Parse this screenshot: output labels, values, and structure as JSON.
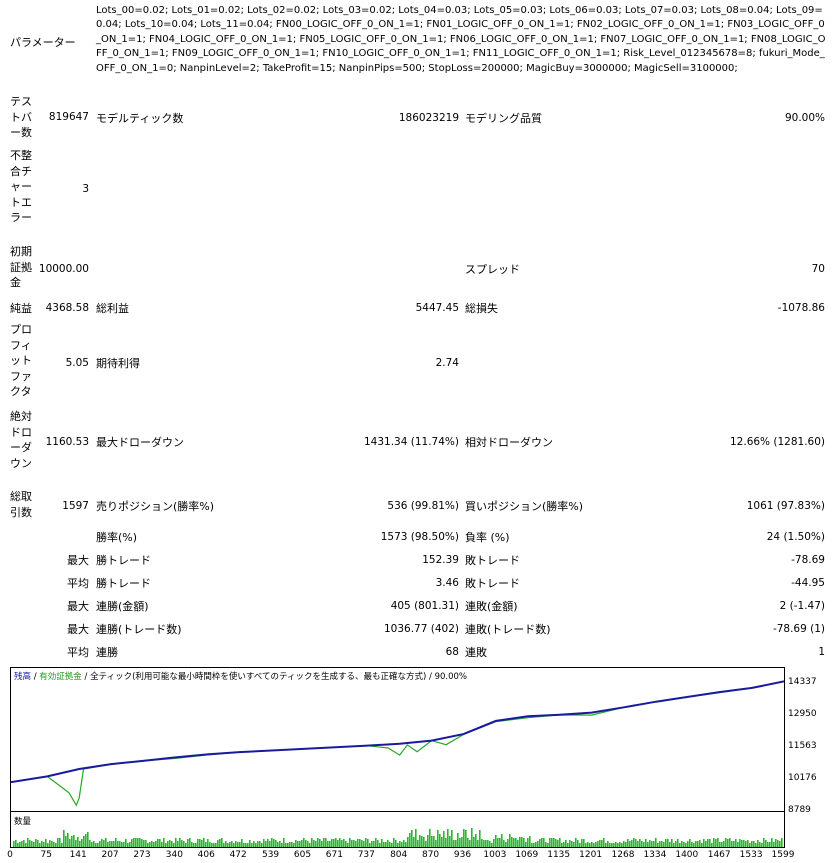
{
  "params_label": "パラメーター",
  "params_text": "Lots_00=0.02; Lots_01=0.02; Lots_02=0.02; Lots_03=0.02; Lots_04=0.03; Lots_05=0.03; Lots_06=0.03; Lots_07=0.03; Lots_08=0.04; Lots_09=0.04; Lots_10=0.04; Lots_11=0.04; FN00_LOGIC_OFF_0_ON_1=1; FN01_LOGIC_OFF_0_ON_1=1; FN02_LOGIC_OFF_0_ON_1=1; FN03_LOGIC_OFF_0_ON_1=1; FN04_LOGIC_OFF_0_ON_1=1; FN05_LOGIC_OFF_0_ON_1=1; FN06_LOGIC_OFF_0_ON_1=1; FN07_LOGIC_OFF_0_ON_1=1; FN08_LOGIC_OFF_0_ON_1=1; FN09_LOGIC_OFF_0_ON_1=1; FN10_LOGIC_OFF_0_ON_1=1; FN11_LOGIC_OFF_0_ON_1=1; Risk_Level_012345678=8; fukuri_Mode_OFF_0_ON_1=0; NanpinLevel=2; TakeProfit=15; NanpinPips=500; StopLoss=200000; MagicBuy=3000000; MagicSell=3100000;",
  "report": {
    "test_bars": {
      "label": "テストバー数",
      "value": "819647"
    },
    "model_ticks": {
      "label": "モデルティック数",
      "value": "186023219"
    },
    "model_quality": {
      "label": "モデリング品質",
      "value": "90.00%"
    },
    "mismatch": {
      "label": "不整合チャートエラー",
      "value": "3"
    },
    "initial_deposit": {
      "label": "初期証拠金",
      "value": "10000.00"
    },
    "spread": {
      "label": "スプレッド",
      "value": "70"
    },
    "net_profit": {
      "label": "純益",
      "value": "4368.58"
    },
    "gross_profit": {
      "label": "総利益",
      "value": "5447.45"
    },
    "gross_loss": {
      "label": "総損失",
      "value": "-1078.86"
    },
    "profit_factor": {
      "label": "プロフィットファクタ",
      "value": "5.05"
    },
    "expected_payoff": {
      "label": "期待利得",
      "value": "2.74"
    },
    "abs_drawdown": {
      "label": "絶対ドローダウン",
      "value": "1160.53"
    },
    "max_drawdown": {
      "label": "最大ドローダウン",
      "value": "1431.34 (11.74%)"
    },
    "rel_drawdown": {
      "label": "相対ドローダウン",
      "value": "12.66% (1281.60)"
    },
    "total_trades": {
      "label": "総取引数",
      "value": "1597"
    },
    "short_pos": {
      "label": "売りポジション(勝率%)",
      "value": "536 (99.81%)"
    },
    "long_pos": {
      "label": "買いポジション(勝率%)",
      "value": "1061 (97.83%)"
    },
    "win_rate": {
      "label": "勝率(%)",
      "value": "1573 (98.50%)"
    },
    "loss_rate": {
      "label": "負率 (%)",
      "value": "24 (1.50%)"
    },
    "max_win_trade": {
      "prefix": "最大",
      "label": "勝トレード",
      "value": "152.39"
    },
    "max_loss_trade": {
      "label": "敗トレード",
      "value": "-78.69"
    },
    "avg_win_trade": {
      "prefix": "平均",
      "label": "勝トレード",
      "value": "3.46"
    },
    "avg_loss_trade": {
      "label": "敗トレード",
      "value": "-44.95"
    },
    "max_consec_wins_amt": {
      "prefix": "最大",
      "label": "連勝(金額)",
      "value": "405 (801.31)"
    },
    "max_consec_losses_amt": {
      "label": "連敗(金額)",
      "value": "2 (-1.47)"
    },
    "max_consec_wins_cnt": {
      "prefix": "最大",
      "label": "連勝(トレード数)",
      "value": "1036.77 (402)"
    },
    "max_consec_losses_cnt": {
      "label": "連敗(トレード数)",
      "value": "-78.69 (1)"
    },
    "avg_consec_wins": {
      "prefix": "平均",
      "label": "連勝",
      "value": "68"
    },
    "avg_consec_losses": {
      "label": "連敗",
      "value": "1"
    }
  },
  "chart": {
    "legend": {
      "balance": "残高",
      "sep1": " / ",
      "equity": "有効証拠金",
      "sep2": " / ",
      "model": "全ティック(利用可能な最小時間枠を使いすべてのティックを生成する、最も正確な方式)",
      "sep3": " / ",
      "quality": "90.00%"
    },
    "volume_label": "数量",
    "colors": {
      "balance": "#1a1a9e",
      "equity": "#22aa22",
      "volume": "#22bb22",
      "legend_balance": "#1a1a9e",
      "legend_equity": "#229922"
    }
  },
  "chart_data": {
    "type": "line",
    "series": [
      {
        "name": "残高",
        "x": [
          0,
          75,
          141,
          207,
          273,
          340,
          406,
          472,
          539,
          605,
          671,
          737,
          804,
          870,
          936,
          1003,
          1069,
          1135,
          1201,
          1268,
          1334,
          1400,
          1467,
          1533,
          1599
        ],
        "values": [
          10080,
          10330,
          10650,
          10860,
          11000,
          11150,
          11280,
          11380,
          11450,
          11520,
          11590,
          11660,
          11740,
          11880,
          12160,
          12730,
          12930,
          13000,
          13090,
          13320,
          13560,
          13770,
          13980,
          14160,
          14440
        ]
      },
      {
        "name": "有効証拠金",
        "x": [
          0,
          75,
          120,
          135,
          141,
          150,
          207,
          273,
          340,
          406,
          472,
          539,
          605,
          671,
          737,
          780,
          804,
          820,
          840,
          870,
          900,
          936,
          1003,
          1069,
          1135,
          1201,
          1268,
          1334,
          1400,
          1467,
          1533,
          1599
        ],
        "values": [
          10080,
          10330,
          9620,
          9080,
          9400,
          10650,
          10860,
          11000,
          11110,
          11260,
          11380,
          11450,
          11520,
          11590,
          11660,
          11560,
          11250,
          11690,
          11400,
          11880,
          11700,
          12140,
          12700,
          12870,
          12990,
          12980,
          13320,
          13560,
          13770,
          13960,
          14160,
          14440
        ]
      }
    ],
    "x_ticks": [
      0,
      75,
      141,
      207,
      273,
      340,
      406,
      472,
      539,
      605,
      671,
      737,
      804,
      870,
      936,
      1003,
      1069,
      1135,
      1201,
      1268,
      1334,
      1400,
      1467,
      1533,
      1599
    ],
    "y_ticks": [
      8789,
      10176,
      11563,
      12950,
      14337
    ],
    "xlim": [
      0,
      1599
    ],
    "ylim": [
      8789,
      14500
    ],
    "volume_label": "数量"
  }
}
